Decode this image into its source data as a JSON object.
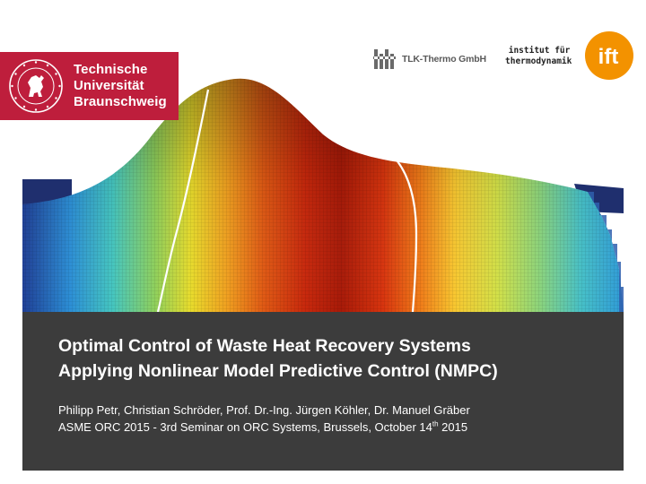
{
  "logos": {
    "tu": {
      "line1": "Technische",
      "line2": "Universität",
      "line3": "Braunschweig",
      "seal_ring_text": "CAROLO-WILHELMINA · BRAUNSCHWEIG",
      "color": "#be1e3c"
    },
    "tlk": {
      "text": "TLK-Thermo GmbH",
      "mark_icon": "tlk-mark-icon"
    },
    "ift": {
      "line1": "institut für",
      "line2": "thermodynamik",
      "badge": "ift",
      "color": "#f39200"
    }
  },
  "hero": {
    "icon": "surface-plot-illustration"
  },
  "title_block": {
    "title_line1": "Optimal Control of Waste Heat Recovery Systems",
    "title_line2": "Applying Nonlinear Model Predictive Control (NMPC)",
    "authors": "Philipp Petr, Christian Schröder, Prof. Dr.-Ing. Jürgen Köhler, Dr. Manuel Gräber",
    "event_prefix": "ASME ORC 2015 - 3rd Seminar on ORC Systems, Brussels,  October 14",
    "event_sup": "th",
    "event_suffix": " 2015",
    "background": "#3c3c3c"
  }
}
